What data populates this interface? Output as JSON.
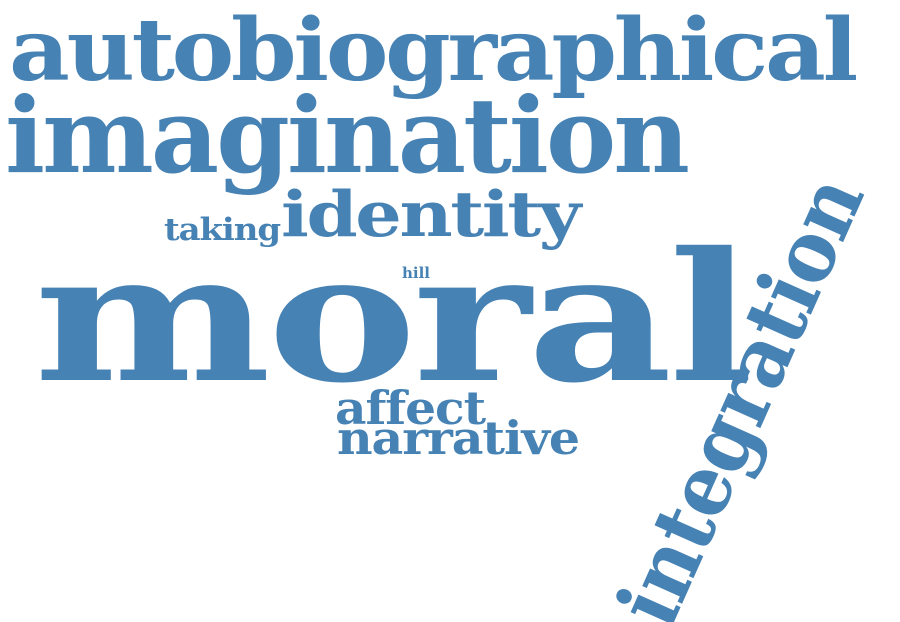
{
  "cloud": {
    "color": "#4682b4",
    "background": "#ffffff",
    "words": {
      "moral": "moral",
      "imagination": "imagination",
      "autobiographical": "autobiographical",
      "integration": "integration",
      "identity": "identity",
      "narrative": "narrative",
      "affect": "affect",
      "taking": "taking",
      "hill": "hill"
    }
  }
}
